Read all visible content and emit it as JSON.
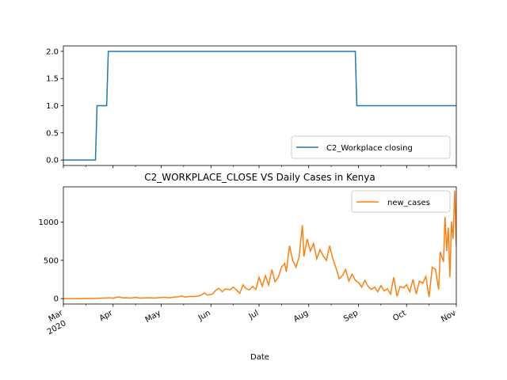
{
  "chart_data": [
    {
      "type": "line",
      "title": "",
      "xlabel": "",
      "ylabel": "",
      "ylim": [
        -0.1,
        2.1
      ],
      "yticks": [
        "0.0",
        "0.5",
        "1.0",
        "1.5",
        "2.0"
      ],
      "ytick_values": [
        0.0,
        0.5,
        1.0,
        1.5,
        2.0
      ],
      "x_range": [
        "2020-03-01",
        "2020-11-01"
      ],
      "legend_position": "lower-right",
      "series": [
        {
          "name": "C2_Workplace closing",
          "color": "#1f77b4",
          "points": [
            [
              "2020-03-01",
              0
            ],
            [
              "2020-03-21",
              0
            ],
            [
              "2020-03-22",
              1
            ],
            [
              "2020-03-28",
              1
            ],
            [
              "2020-03-29",
              2
            ],
            [
              "2020-08-30",
              2
            ],
            [
              "2020-08-31",
              1
            ],
            [
              "2020-11-01",
              1
            ]
          ]
        }
      ]
    },
    {
      "type": "line",
      "title": "C2_WORKPLACE_CLOSE VS Daily Cases in Kenya",
      "xlabel": "Date",
      "ylabel": "",
      "ylim": [
        -70,
        1460
      ],
      "yticks": [
        "0",
        "500",
        "1000"
      ],
      "ytick_values": [
        0,
        500,
        1000
      ],
      "x_range": [
        "2020-03-01",
        "2020-11-01"
      ],
      "xticks": [
        {
          "date": "2020-03-01",
          "label": "Mar",
          "sublabel": "2020"
        },
        {
          "date": "2020-04-01",
          "label": "Apr"
        },
        {
          "date": "2020-05-01",
          "label": "May"
        },
        {
          "date": "2020-06-01",
          "label": "Jun"
        },
        {
          "date": "2020-07-01",
          "label": "Jul"
        },
        {
          "date": "2020-08-01",
          "label": "Aug"
        },
        {
          "date": "2020-09-01",
          "label": "Sep"
        },
        {
          "date": "2020-10-01",
          "label": "Oct"
        },
        {
          "date": "2020-11-01",
          "label": "Nov"
        }
      ],
      "legend_position": "top-right",
      "series": [
        {
          "name": "new_cases",
          "color": "#ff7f0e",
          "points": [
            [
              "2020-03-01",
              0
            ],
            [
              "2020-03-12",
              0
            ],
            [
              "2020-03-15",
              2
            ],
            [
              "2020-03-18",
              1
            ],
            [
              "2020-03-21",
              3
            ],
            [
              "2020-03-24",
              6
            ],
            [
              "2020-03-27",
              8
            ],
            [
              "2020-03-30",
              12
            ],
            [
              "2020-04-01",
              5
            ],
            [
              "2020-04-03",
              18
            ],
            [
              "2020-04-05",
              22
            ],
            [
              "2020-04-07",
              10
            ],
            [
              "2020-04-09",
              12
            ],
            [
              "2020-04-12",
              8
            ],
            [
              "2020-04-15",
              16
            ],
            [
              "2020-04-18",
              6
            ],
            [
              "2020-04-21",
              10
            ],
            [
              "2020-04-24",
              12
            ],
            [
              "2020-04-27",
              8
            ],
            [
              "2020-04-30",
              14
            ],
            [
              "2020-05-03",
              18
            ],
            [
              "2020-05-06",
              12
            ],
            [
              "2020-05-09",
              20
            ],
            [
              "2020-05-12",
              25
            ],
            [
              "2020-05-14",
              36
            ],
            [
              "2020-05-16",
              20
            ],
            [
              "2020-05-19",
              30
            ],
            [
              "2020-05-22",
              28
            ],
            [
              "2020-05-25",
              38
            ],
            [
              "2020-05-28",
              72
            ],
            [
              "2020-05-30",
              45
            ],
            [
              "2020-06-02",
              60
            ],
            [
              "2020-06-04",
              110
            ],
            [
              "2020-06-06",
              135
            ],
            [
              "2020-06-08",
              90
            ],
            [
              "2020-06-10",
              125
            ],
            [
              "2020-06-13",
              118
            ],
            [
              "2020-06-15",
              150
            ],
            [
              "2020-06-17",
              110
            ],
            [
              "2020-06-19",
              70
            ],
            [
              "2020-06-21",
              180
            ],
            [
              "2020-06-23",
              130
            ],
            [
              "2020-06-25",
              115
            ],
            [
              "2020-06-27",
              160
            ],
            [
              "2020-06-29",
              120
            ],
            [
              "2020-07-01",
              280
            ],
            [
              "2020-07-03",
              160
            ],
            [
              "2020-07-05",
              300
            ],
            [
              "2020-07-07",
              180
            ],
            [
              "2020-07-09",
              380
            ],
            [
              "2020-07-11",
              220
            ],
            [
              "2020-07-13",
              280
            ],
            [
              "2020-07-15",
              410
            ],
            [
              "2020-07-17",
              460
            ],
            [
              "2020-07-18",
              350
            ],
            [
              "2020-07-20",
              690
            ],
            [
              "2020-07-22",
              500
            ],
            [
              "2020-07-24",
              410
            ],
            [
              "2020-07-26",
              545
            ],
            [
              "2020-07-28",
              960
            ],
            [
              "2020-07-29",
              550
            ],
            [
              "2020-07-31",
              780
            ],
            [
              "2020-08-02",
              620
            ],
            [
              "2020-08-04",
              720
            ],
            [
              "2020-08-06",
              520
            ],
            [
              "2020-08-08",
              640
            ],
            [
              "2020-08-10",
              560
            ],
            [
              "2020-08-12",
              500
            ],
            [
              "2020-08-14",
              690
            ],
            [
              "2020-08-16",
              520
            ],
            [
              "2020-08-18",
              400
            ],
            [
              "2020-08-20",
              260
            ],
            [
              "2020-08-22",
              300
            ],
            [
              "2020-08-24",
              380
            ],
            [
              "2020-08-26",
              230
            ],
            [
              "2020-08-28",
              320
            ],
            [
              "2020-08-30",
              240
            ],
            [
              "2020-09-01",
              210
            ],
            [
              "2020-09-03",
              150
            ],
            [
              "2020-09-05",
              240
            ],
            [
              "2020-09-07",
              160
            ],
            [
              "2020-09-09",
              120
            ],
            [
              "2020-09-11",
              150
            ],
            [
              "2020-09-13",
              90
            ],
            [
              "2020-09-15",
              170
            ],
            [
              "2020-09-17",
              100
            ],
            [
              "2020-09-19",
              130
            ],
            [
              "2020-09-21",
              60
            ],
            [
              "2020-09-23",
              280
            ],
            [
              "2020-09-25",
              30
            ],
            [
              "2020-09-27",
              160
            ],
            [
              "2020-09-29",
              140
            ],
            [
              "2020-10-01",
              180
            ],
            [
              "2020-10-03",
              90
            ],
            [
              "2020-10-05",
              250
            ],
            [
              "2020-10-07",
              60
            ],
            [
              "2020-10-09",
              230
            ],
            [
              "2020-10-11",
              200
            ],
            [
              "2020-10-13",
              290
            ],
            [
              "2020-10-15",
              20
            ],
            [
              "2020-10-17",
              410
            ],
            [
              "2020-10-19",
              380
            ],
            [
              "2020-10-21",
              120
            ],
            [
              "2020-10-22",
              610
            ],
            [
              "2020-10-24",
              480
            ],
            [
              "2020-10-25",
              1070
            ],
            [
              "2020-10-26",
              620
            ],
            [
              "2020-10-27",
              930
            ],
            [
              "2020-10-28",
              280
            ],
            [
              "2020-10-29",
              1010
            ],
            [
              "2020-10-30",
              780
            ],
            [
              "2020-10-31",
              1410
            ],
            [
              "2020-11-01",
              690
            ]
          ]
        }
      ]
    }
  ]
}
